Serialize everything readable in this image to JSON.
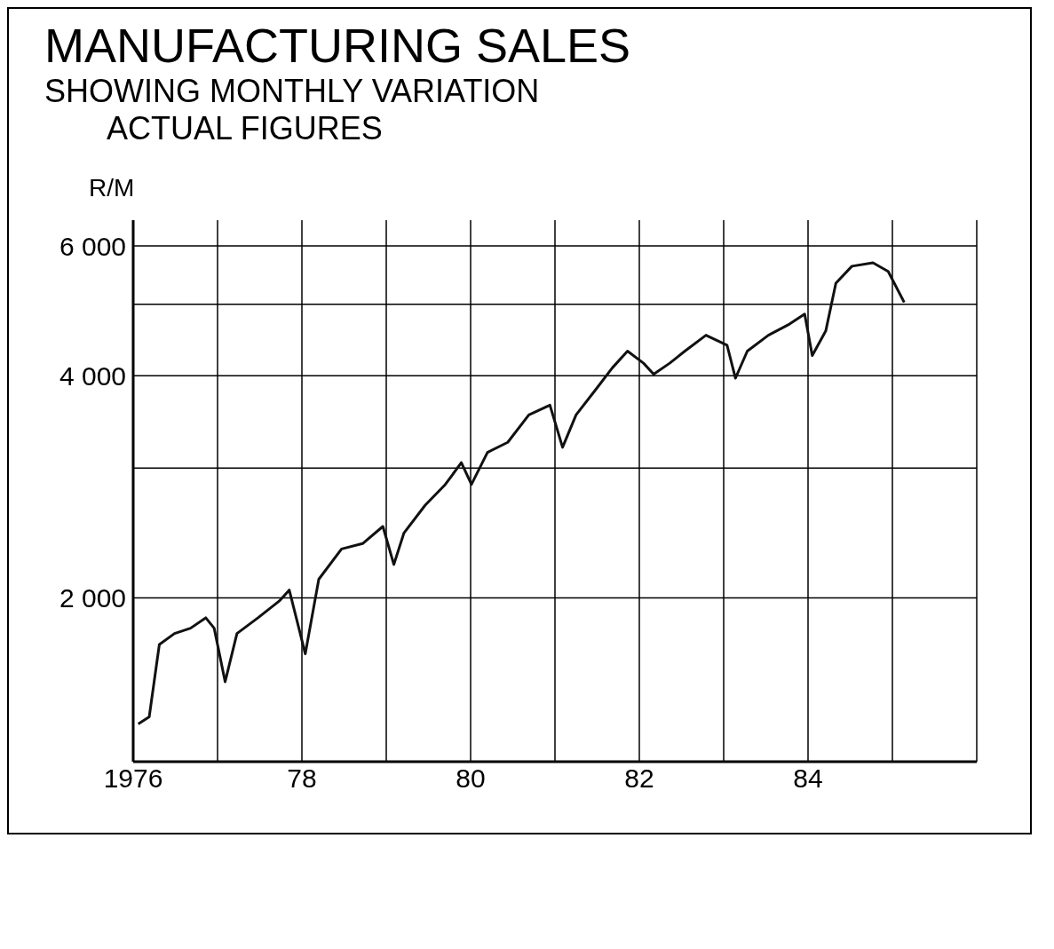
{
  "chart_data": {
    "type": "line",
    "title": "MANUFACTURING SALES",
    "subtitle": "SHOWING MONTHLY VARIATION",
    "annotations": [
      "ACTUAL FIGURES"
    ],
    "ylabel": "R/M",
    "x": [
      1976.06,
      1976.19,
      1976.31,
      1976.49,
      1976.68,
      1976.86,
      1976.96,
      1977.09,
      1977.23,
      1977.48,
      1977.73,
      1977.85,
      1977.98,
      1978.04,
      1978.2,
      1978.47,
      1978.72,
      1978.96,
      1979.09,
      1979.21,
      1979.46,
      1979.7,
      1979.89,
      1980.01,
      1980.2,
      1980.44,
      1980.69,
      1980.94,
      1981.09,
      1981.25,
      1981.49,
      1981.68,
      1981.86,
      1982.05,
      1982.17,
      1982.36,
      1982.54,
      1982.79,
      1983.04,
      1983.14,
      1983.28,
      1983.53,
      1983.78,
      1983.96,
      1984.05,
      1984.21,
      1984.33,
      1984.52,
      1984.77,
      1984.95,
      1985.14
    ],
    "series": [
      {
        "color": "#111111",
        "values": [
          1350,
          1380,
          1730,
          1790,
          1820,
          1880,
          1820,
          1540,
          1790,
          1880,
          1980,
          2050,
          1790,
          1680,
          2120,
          2330,
          2370,
          2500,
          2220,
          2450,
          2670,
          2850,
          3050,
          2850,
          3150,
          3250,
          3540,
          3650,
          3200,
          3540,
          3840,
          4100,
          4320,
          4160,
          4020,
          4160,
          4320,
          4540,
          4400,
          3970,
          4320,
          4540,
          4700,
          4850,
          4260,
          4600,
          5340,
          5630,
          5690,
          5540,
          5030
        ]
      }
    ],
    "xlim": [
      1976,
      1986
    ],
    "xticks": [
      {
        "value": 1976,
        "label": "1976"
      },
      {
        "value": 1977,
        "label": null
      },
      {
        "value": 1978,
        "label": "78"
      },
      {
        "value": 1979,
        "label": null
      },
      {
        "value": 1980,
        "label": "80"
      },
      {
        "value": 1981,
        "label": null
      },
      {
        "value": 1982,
        "label": "82"
      },
      {
        "value": 1983,
        "label": null
      },
      {
        "value": 1984,
        "label": "84"
      },
      {
        "value": 1985,
        "label": null
      },
      {
        "value": 1986,
        "label": null
      }
    ],
    "ylim": [
      1200,
      6500
    ],
    "yticks": [
      {
        "value": 2000,
        "label": "2 000"
      },
      {
        "value": 3000,
        "label": null
      },
      {
        "value": 4000,
        "label": "4 000"
      },
      {
        "value": 5000,
        "label": null
      },
      {
        "value": 6000,
        "label": "6 000"
      }
    ],
    "log": true,
    "grid": true,
    "legend": false,
    "marker": "none",
    "line_style": "solid"
  }
}
